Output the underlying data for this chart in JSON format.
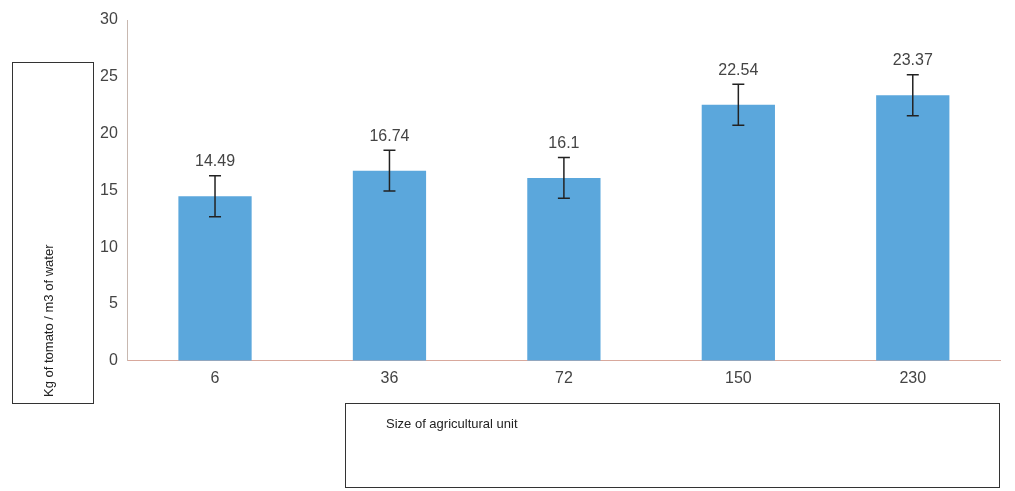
{
  "chart_data": {
    "type": "bar",
    "xlabel": "Size of agricultural unit",
    "ylabel": "Kg of tomato / m3 of water",
    "categories": [
      "6",
      "36",
      "72",
      "150",
      "230"
    ],
    "values": [
      14.49,
      16.74,
      16.1,
      22.54,
      23.37
    ],
    "errors": [
      1.8,
      1.8,
      1.8,
      1.8,
      1.8
    ],
    "color": "#5ba7dc",
    "data_labels": true,
    "ylim": [
      0,
      30
    ],
    "yticks": [
      0,
      5,
      10,
      15,
      20,
      25,
      30
    ],
    "grid": false,
    "legend": false
  }
}
